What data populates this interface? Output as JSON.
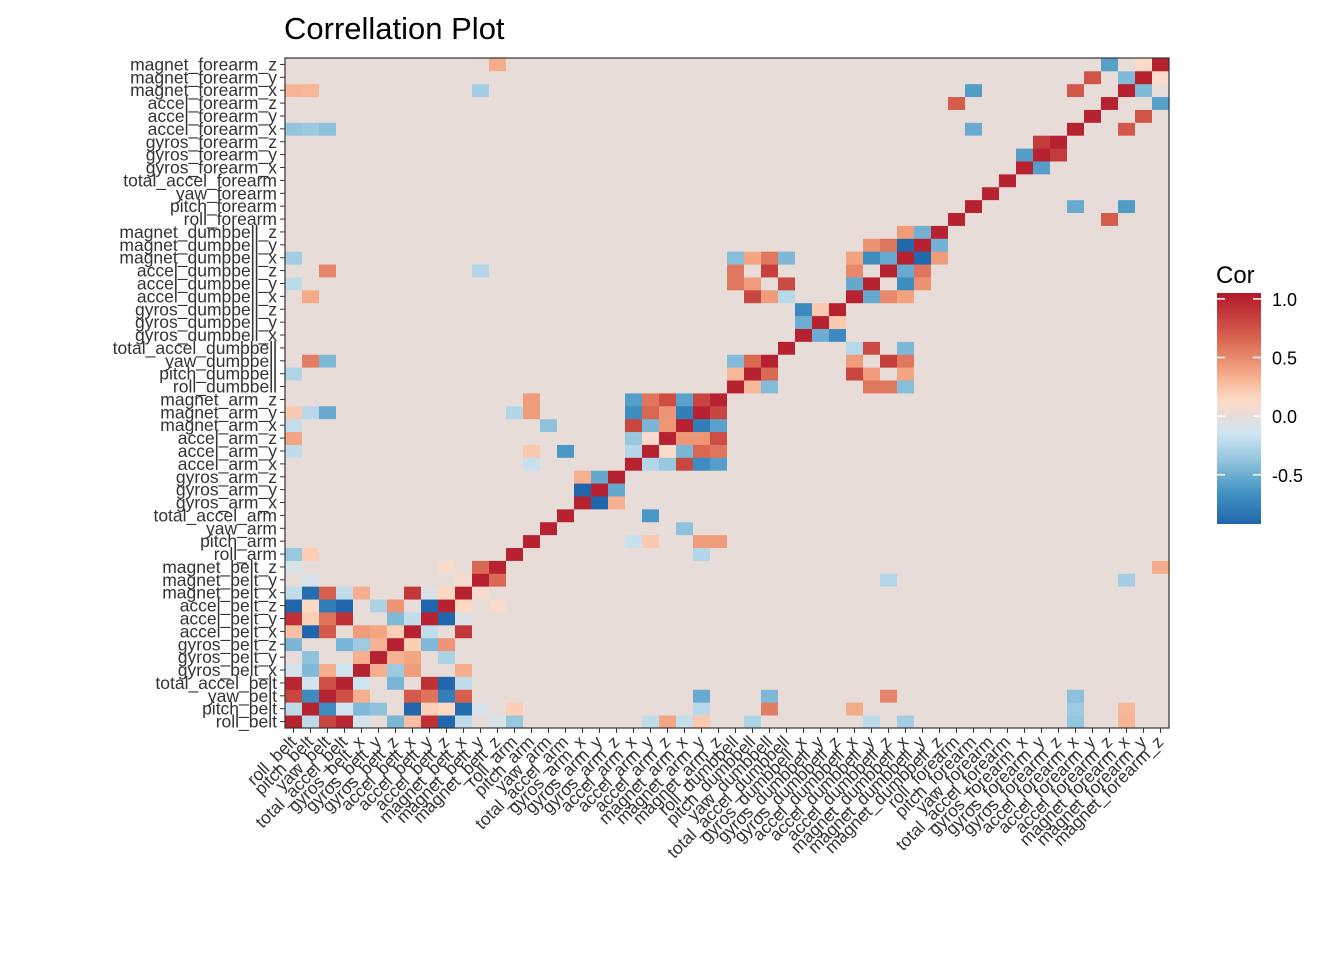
{
  "chart_data": {
    "type": "heatmap",
    "title": "Correllation Plot",
    "legend": {
      "title": "Cor",
      "ticks": [
        "1.0",
        "0.5",
        "0.0",
        "-0.5"
      ],
      "tick_values": [
        1.0,
        0.5,
        0.0,
        -0.5
      ],
      "range": [
        -0.92,
        1.05
      ],
      "placement": "right",
      "colors": [
        "#2166AC",
        "#4393C3",
        "#92C5DE",
        "#D1E5F0",
        "#E8DCD9",
        "#FDDBC7",
        "#F4A582",
        "#D6604D",
        "#B2182B"
      ],
      "color_values": [
        -0.92,
        -0.65,
        -0.38,
        -0.14,
        0.0,
        0.14,
        0.38,
        0.68,
        1.05
      ]
    },
    "variables": [
      "roll_belt",
      "pitch_belt",
      "yaw_belt",
      "total_accel_belt",
      "gyros_belt_x",
      "gyros_belt_y",
      "gyros_belt_z",
      "accel_belt_x",
      "accel_belt_y",
      "accel_belt_z",
      "magnet_belt_x",
      "magnet_belt_y",
      "magnet_belt_z",
      "roll_arm",
      "pitch_arm",
      "yaw_arm",
      "total_accel_arm",
      "gyros_arm_x",
      "gyros_arm_y",
      "gyros_arm_z",
      "accel_arm_x",
      "accel_arm_y",
      "accel_arm_z",
      "magnet_arm_x",
      "magnet_arm_y",
      "magnet_arm_z",
      "roll_dumbbell",
      "pitch_dumbbell",
      "yaw_dumbbell",
      "total_accel_dumbbell",
      "gyros_dumbbell_x",
      "gyros_dumbbell_y",
      "gyros_dumbbell_z",
      "accel_dumbbell_x",
      "accel_dumbbell_y",
      "accel_dumbbell_z",
      "magnet_dumbbell_x",
      "magnet_dumbbell_y",
      "magnet_dumbbell_z",
      "roll_forearm",
      "pitch_forearm",
      "yaw_forearm",
      "total_accel_forearm",
      "gyros_forearm_x",
      "gyros_forearm_y",
      "gyros_forearm_z",
      "accel_forearm_x",
      "accel_forearm_y",
      "accel_forearm_z",
      "magnet_forearm_x",
      "magnet_forearm_y",
      "magnet_forearm_z"
    ],
    "diagonal": 1.0,
    "correlations": [
      {
        "a": "roll_belt",
        "b": "pitch_belt",
        "r": -0.22
      },
      {
        "a": "roll_belt",
        "b": "yaw_belt",
        "r": 0.82
      },
      {
        "a": "roll_belt",
        "b": "total_accel_belt",
        "r": 0.98
      },
      {
        "a": "roll_belt",
        "b": "gyros_belt_x",
        "r": -0.12
      },
      {
        "a": "roll_belt",
        "b": "gyros_belt_z",
        "r": -0.46
      },
      {
        "a": "roll_belt",
        "b": "accel_belt_x",
        "r": 0.26
      },
      {
        "a": "roll_belt",
        "b": "accel_belt_y",
        "r": 0.93
      },
      {
        "a": "roll_belt",
        "b": "accel_belt_z",
        "r": -0.99
      },
      {
        "a": "roll_belt",
        "b": "magnet_belt_x",
        "r": -0.2
      },
      {
        "a": "roll_belt",
        "b": "magnet_belt_z",
        "r": -0.1
      },
      {
        "a": "roll_belt",
        "b": "roll_arm",
        "r": -0.36
      },
      {
        "a": "roll_belt",
        "b": "accel_arm_y",
        "r": -0.21
      },
      {
        "a": "roll_belt",
        "b": "accel_arm_z",
        "r": 0.38
      },
      {
        "a": "roll_belt",
        "b": "magnet_arm_x",
        "r": -0.19
      },
      {
        "a": "roll_belt",
        "b": "magnet_arm_y",
        "r": 0.22
      },
      {
        "a": "roll_belt",
        "b": "pitch_dumbbell",
        "r": -0.27
      },
      {
        "a": "roll_belt",
        "b": "accel_dumbbell_y",
        "r": -0.22
      },
      {
        "a": "roll_belt",
        "b": "magnet_dumbbell_x",
        "r": -0.32
      },
      {
        "a": "roll_belt",
        "b": "accel_forearm_x",
        "r": -0.38
      },
      {
        "a": "roll_belt",
        "b": "magnet_forearm_x",
        "r": 0.31
      },
      {
        "a": "pitch_belt",
        "b": "yaw_belt",
        "r": -0.7
      },
      {
        "a": "pitch_belt",
        "b": "total_accel_belt",
        "r": -0.14
      },
      {
        "a": "pitch_belt",
        "b": "gyros_belt_x",
        "r": -0.44
      },
      {
        "a": "pitch_belt",
        "b": "gyros_belt_y",
        "r": -0.39
      },
      {
        "a": "pitch_belt",
        "b": "accel_belt_x",
        "r": -0.97
      },
      {
        "a": "pitch_belt",
        "b": "accel_belt_y",
        "r": 0.19
      },
      {
        "a": "pitch_belt",
        "b": "accel_belt_z",
        "r": 0.15
      },
      {
        "a": "pitch_belt",
        "b": "magnet_belt_x",
        "r": -0.88
      },
      {
        "a": "pitch_belt",
        "b": "magnet_belt_y",
        "r": -0.09
      },
      {
        "a": "pitch_belt",
        "b": "roll_arm",
        "r": 0.2
      },
      {
        "a": "pitch_belt",
        "b": "magnet_arm_y",
        "r": -0.24
      },
      {
        "a": "pitch_belt",
        "b": "accel_dumbbell_x",
        "r": 0.36
      },
      {
        "a": "pitch_belt",
        "b": "yaw_dumbbell",
        "r": 0.55
      },
      {
        "a": "pitch_belt",
        "b": "accel_forearm_x",
        "r": -0.34
      },
      {
        "a": "pitch_belt",
        "b": "magnet_forearm_x",
        "r": 0.3
      },
      {
        "a": "yaw_belt",
        "b": "total_accel_belt",
        "r": 0.76
      },
      {
        "a": "yaw_belt",
        "b": "gyros_belt_x",
        "r": 0.34
      },
      {
        "a": "yaw_belt",
        "b": "accel_belt_x",
        "r": 0.71
      },
      {
        "a": "yaw_belt",
        "b": "accel_belt_y",
        "r": 0.6
      },
      {
        "a": "yaw_belt",
        "b": "accel_belt_z",
        "r": -0.78
      },
      {
        "a": "yaw_belt",
        "b": "magnet_belt_x",
        "r": 0.68
      },
      {
        "a": "yaw_belt",
        "b": "magnet_arm_y",
        "r": -0.52
      },
      {
        "a": "yaw_belt",
        "b": "accel_dumbbell_z",
        "r": 0.52
      },
      {
        "a": "yaw_belt",
        "b": "yaw_dumbbell",
        "r": -0.45
      },
      {
        "a": "yaw_belt",
        "b": "accel_forearm_x",
        "r": -0.4
      },
      {
        "a": "total_accel_belt",
        "b": "gyros_belt_x",
        "r": -0.15
      },
      {
        "a": "total_accel_belt",
        "b": "gyros_belt_z",
        "r": -0.47
      },
      {
        "a": "total_accel_belt",
        "b": "accel_belt_y",
        "r": 0.93
      },
      {
        "a": "total_accel_belt",
        "b": "accel_belt_z",
        "r": -0.97
      },
      {
        "a": "total_accel_belt",
        "b": "magnet_belt_x",
        "r": -0.2
      },
      {
        "a": "gyros_belt_x",
        "b": "gyros_belt_y",
        "r": 0.34
      },
      {
        "a": "gyros_belt_x",
        "b": "gyros_belt_z",
        "r": -0.34
      },
      {
        "a": "gyros_belt_x",
        "b": "accel_belt_x",
        "r": 0.42
      },
      {
        "a": "gyros_belt_x",
        "b": "magnet_belt_x",
        "r": 0.34
      },
      {
        "a": "gyros_belt_y",
        "b": "gyros_belt_z",
        "r": 0.32
      },
      {
        "a": "gyros_belt_y",
        "b": "accel_belt_x",
        "r": 0.38
      },
      {
        "a": "gyros_belt_y",
        "b": "accel_belt_z",
        "r": -0.28
      },
      {
        "a": "gyros_belt_z",
        "b": "accel_belt_x",
        "r": 0.2
      },
      {
        "a": "gyros_belt_z",
        "b": "accel_belt_y",
        "r": -0.44
      },
      {
        "a": "gyros_belt_z",
        "b": "accel_belt_z",
        "r": 0.45
      },
      {
        "a": "accel_belt_x",
        "b": "accel_belt_y",
        "r": -0.2
      },
      {
        "a": "accel_belt_x",
        "b": "magnet_belt_x",
        "r": 0.89
      },
      {
        "a": "accel_belt_y",
        "b": "accel_belt_z",
        "r": -0.93
      },
      {
        "a": "accel_belt_y",
        "b": "magnet_belt_x",
        "r": -0.08
      },
      {
        "a": "accel_belt_z",
        "b": "magnet_belt_x",
        "r": 0.15
      },
      {
        "a": "accel_belt_z",
        "b": "magnet_belt_z",
        "r": 0.1
      },
      {
        "a": "magnet_belt_x",
        "b": "magnet_belt_y",
        "r": 0.1
      },
      {
        "a": "magnet_belt_y",
        "b": "magnet_belt_z",
        "r": 0.64
      },
      {
        "a": "magnet_belt_y",
        "b": "accel_dumbbell_z",
        "r": -0.25
      },
      {
        "a": "magnet_belt_y",
        "b": "magnet_forearm_x",
        "r": -0.31
      },
      {
        "a": "magnet_belt_z",
        "b": "magnet_forearm_z",
        "r": 0.35
      },
      {
        "a": "roll_arm",
        "b": "magnet_arm_y",
        "r": -0.26
      },
      {
        "a": "pitch_arm",
        "b": "accel_arm_x",
        "r": -0.18
      },
      {
        "a": "pitch_arm",
        "b": "accel_arm_y",
        "r": 0.22
      },
      {
        "a": "pitch_arm",
        "b": "magnet_arm_y",
        "r": 0.42
      },
      {
        "a": "pitch_arm",
        "b": "magnet_arm_z",
        "r": 0.42
      },
      {
        "a": "yaw_arm",
        "b": "magnet_arm_x",
        "r": -0.39
      },
      {
        "a": "total_accel_arm",
        "b": "accel_arm_y",
        "r": -0.63
      },
      {
        "a": "gyros_arm_x",
        "b": "gyros_arm_y",
        "r": -0.92
      },
      {
        "a": "gyros_arm_x",
        "b": "gyros_arm_z",
        "r": 0.33
      },
      {
        "a": "gyros_arm_y",
        "b": "gyros_arm_z",
        "r": -0.53
      },
      {
        "a": "accel_arm_x",
        "b": "accel_arm_y",
        "r": -0.25
      },
      {
        "a": "accel_arm_x",
        "b": "accel_arm_z",
        "r": -0.36
      },
      {
        "a": "accel_arm_x",
        "b": "magnet_arm_x",
        "r": 0.81
      },
      {
        "a": "accel_arm_x",
        "b": "magnet_arm_y",
        "r": -0.69
      },
      {
        "a": "accel_arm_x",
        "b": "magnet_arm_z",
        "r": -0.59
      },
      {
        "a": "accel_arm_y",
        "b": "accel_arm_z",
        "r": 0.1
      },
      {
        "a": "accel_arm_y",
        "b": "magnet_arm_x",
        "r": -0.46
      },
      {
        "a": "accel_arm_y",
        "b": "magnet_arm_y",
        "r": 0.65
      },
      {
        "a": "accel_arm_y",
        "b": "magnet_arm_z",
        "r": 0.59
      },
      {
        "a": "accel_arm_z",
        "b": "magnet_arm_x",
        "r": 0.44
      },
      {
        "a": "accel_arm_z",
        "b": "magnet_arm_y",
        "r": 0.45
      },
      {
        "a": "accel_arm_z",
        "b": "magnet_arm_z",
        "r": 0.78
      },
      {
        "a": "magnet_arm_x",
        "b": "magnet_arm_y",
        "r": -0.78
      },
      {
        "a": "magnet_arm_x",
        "b": "magnet_arm_z",
        "r": -0.57
      },
      {
        "a": "magnet_arm_y",
        "b": "magnet_arm_z",
        "r": 0.82
      },
      {
        "a": "roll_dumbbell",
        "b": "pitch_dumbbell",
        "r": 0.3
      },
      {
        "a": "roll_dumbbell",
        "b": "yaw_dumbbell",
        "r": -0.43
      },
      {
        "a": "roll_dumbbell",
        "b": "accel_dumbbell_y",
        "r": 0.58
      },
      {
        "a": "roll_dumbbell",
        "b": "accel_dumbbell_z",
        "r": 0.58
      },
      {
        "a": "roll_dumbbell",
        "b": "magnet_dumbbell_x",
        "r": -0.42
      },
      {
        "a": "pitch_dumbbell",
        "b": "yaw_dumbbell",
        "r": 0.64
      },
      {
        "a": "pitch_dumbbell",
        "b": "accel_dumbbell_x",
        "r": 0.81
      },
      {
        "a": "pitch_dumbbell",
        "b": "accel_dumbbell_y",
        "r": 0.42
      },
      {
        "a": "pitch_dumbbell",
        "b": "magnet_dumbbell_x",
        "r": 0.38
      },
      {
        "a": "yaw_dumbbell",
        "b": "accel_dumbbell_x",
        "r": 0.42
      },
      {
        "a": "yaw_dumbbell",
        "b": "accel_dumbbell_z",
        "r": 0.85
      },
      {
        "a": "yaw_dumbbell",
        "b": "magnet_dumbbell_x",
        "r": 0.58
      },
      {
        "a": "total_accel_dumbbell",
        "b": "accel_dumbbell_x",
        "r": -0.24
      },
      {
        "a": "total_accel_dumbbell",
        "b": "accel_dumbbell_y",
        "r": 0.8
      },
      {
        "a": "total_accel_dumbbell",
        "b": "magnet_dumbbell_x",
        "r": -0.45
      },
      {
        "a": "gyros_dumbbell_x",
        "b": "gyros_dumbbell_y",
        "r": -0.51
      },
      {
        "a": "gyros_dumbbell_x",
        "b": "gyros_dumbbell_z",
        "r": -0.71
      },
      {
        "a": "gyros_dumbbell_y",
        "b": "gyros_dumbbell_z",
        "r": 0.22
      },
      {
        "a": "accel_dumbbell_x",
        "b": "accel_dumbbell_y",
        "r": -0.53
      },
      {
        "a": "accel_dumbbell_x",
        "b": "accel_dumbbell_z",
        "r": 0.5
      },
      {
        "a": "accel_dumbbell_x",
        "b": "magnet_dumbbell_x",
        "r": 0.39
      },
      {
        "a": "accel_dumbbell_y",
        "b": "magnet_dumbbell_x",
        "r": -0.69
      },
      {
        "a": "accel_dumbbell_y",
        "b": "magnet_dumbbell_y",
        "r": 0.46
      },
      {
        "a": "accel_dumbbell_z",
        "b": "magnet_dumbbell_x",
        "r": -0.52
      },
      {
        "a": "accel_dumbbell_z",
        "b": "magnet_dumbbell_y",
        "r": 0.59
      },
      {
        "a": "magnet_dumbbell_x",
        "b": "magnet_dumbbell_y",
        "r": -0.91
      },
      {
        "a": "magnet_dumbbell_x",
        "b": "magnet_dumbbell_z",
        "r": 0.42
      },
      {
        "a": "magnet_dumbbell_y",
        "b": "magnet_dumbbell_z",
        "r": -0.49
      },
      {
        "a": "roll_forearm",
        "b": "accel_forearm_z",
        "r": 0.7
      },
      {
        "a": "pitch_forearm",
        "b": "accel_forearm_x",
        "r": -0.52
      },
      {
        "a": "pitch_forearm",
        "b": "magnet_forearm_x",
        "r": -0.6
      },
      {
        "a": "gyros_forearm_x",
        "b": "gyros_forearm_y",
        "r": -0.59
      },
      {
        "a": "gyros_forearm_y",
        "b": "gyros_forearm_z",
        "r": 0.87
      },
      {
        "a": "accel_forearm_x",
        "b": "magnet_forearm_x",
        "r": 0.72
      },
      {
        "a": "accel_forearm_y",
        "b": "magnet_forearm_y",
        "r": 0.73
      },
      {
        "a": "accel_forearm_z",
        "b": "magnet_forearm_z",
        "r": -0.58
      },
      {
        "a": "magnet_forearm_x",
        "b": "magnet_forearm_y",
        "r": -0.44
      },
      {
        "a": "magnet_forearm_y",
        "b": "magnet_forearm_z",
        "r": 0.12
      }
    ]
  }
}
